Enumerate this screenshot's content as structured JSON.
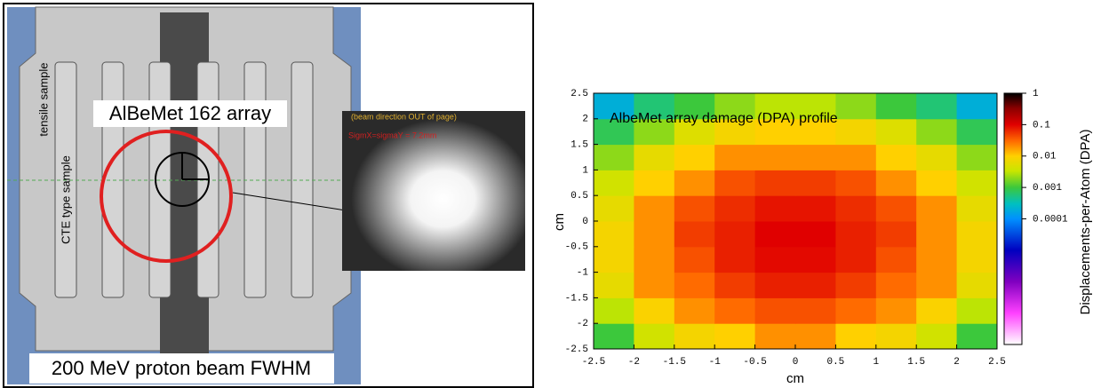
{
  "diagram": {
    "labels": {
      "tensile": "tensile sample",
      "cte": "CTE type sample",
      "array": "AlBeMet 162 array",
      "beam_dir": "(beam direction OUT of page)",
      "sigma": "SigmX=sigmaY = 7.2mm",
      "caption": "200 MeV proton beam FWHM"
    }
  },
  "chart_data": {
    "type": "heatmap",
    "title": "AlbeMet array damage (DPA) profile",
    "x_label": "cm",
    "y_label": "cm",
    "colorbar_label": "Displacements-per-Atom (DPA)",
    "x": [
      -2.25,
      -1.75,
      -1.25,
      -0.75,
      -0.25,
      0.25,
      0.75,
      1.25,
      1.75,
      2.25
    ],
    "y": [
      -2.25,
      -1.75,
      -1.25,
      -0.75,
      -0.25,
      0.25,
      0.75,
      1.25,
      1.75,
      2.25
    ],
    "values": [
      [
        0.001,
        0.004,
        0.008,
        0.01,
        0.02,
        0.02,
        0.01,
        0.008,
        0.004,
        0.001
      ],
      [
        0.003,
        0.009,
        0.02,
        0.03,
        0.04,
        0.04,
        0.03,
        0.02,
        0.009,
        0.003
      ],
      [
        0.006,
        0.02,
        0.03,
        0.05,
        0.07,
        0.07,
        0.05,
        0.03,
        0.02,
        0.006
      ],
      [
        0.008,
        0.02,
        0.04,
        0.07,
        0.09,
        0.09,
        0.07,
        0.04,
        0.02,
        0.008
      ],
      [
        0.008,
        0.02,
        0.05,
        0.07,
        0.1,
        0.1,
        0.07,
        0.05,
        0.02,
        0.008
      ],
      [
        0.006,
        0.02,
        0.04,
        0.06,
        0.08,
        0.08,
        0.06,
        0.04,
        0.02,
        0.006
      ],
      [
        0.004,
        0.01,
        0.02,
        0.04,
        0.05,
        0.05,
        0.04,
        0.02,
        0.01,
        0.004
      ],
      [
        0.002,
        0.006,
        0.01,
        0.02,
        0.02,
        0.02,
        0.02,
        0.01,
        0.006,
        0.002
      ],
      [
        0.0008,
        0.002,
        0.005,
        0.008,
        0.01,
        0.01,
        0.008,
        0.005,
        0.002,
        0.0008
      ],
      [
        0.0002,
        0.0006,
        0.001,
        0.002,
        0.003,
        0.003,
        0.002,
        0.001,
        0.0006,
        0.0002
      ]
    ],
    "xlim": [
      -2.5,
      2.5
    ],
    "ylim": [
      -2.5,
      2.5
    ],
    "xticks": [
      -2.5,
      -2,
      -1.5,
      -1,
      -0.5,
      0,
      0.5,
      1,
      1.5,
      2,
      2.5
    ],
    "yticks": [
      -2.5,
      -2,
      -1.5,
      -1,
      -0.5,
      0,
      0.5,
      1,
      1.5,
      2,
      2.5
    ],
    "clim": [
      1e-08,
      1
    ],
    "cticks": [
      1,
      0.1,
      0.01,
      0.001,
      0.0001
    ],
    "log_color": true
  }
}
